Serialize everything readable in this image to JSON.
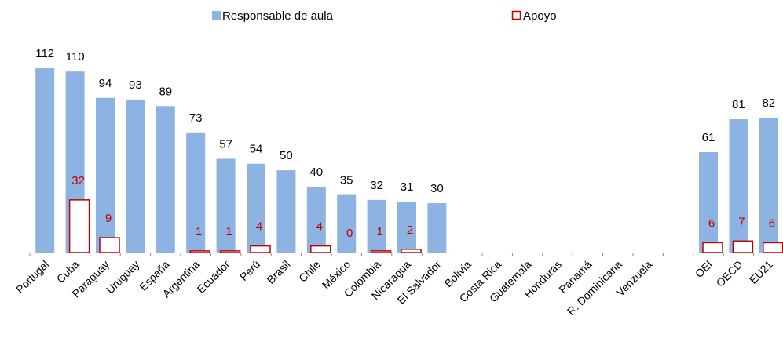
{
  "chart_data": {
    "type": "bar",
    "categories": [
      "Portugal",
      "Cuba",
      "Paraguay",
      "Uruguay",
      "España",
      "Argentina",
      "Ecuador",
      "Perú",
      "Brasil",
      "Chile",
      "México",
      "Colombia",
      "Nicaragua",
      "El Salvador",
      "Bolivia",
      "Costa Rica",
      "Guatemala",
      "Honduras",
      "Panamá",
      "R. Dominicana",
      "Venzuela",
      null,
      "OEI",
      "OECD",
      "EU21"
    ],
    "series": [
      {
        "name": "Responsable de aula",
        "color": "#8db3e2",
        "values": [
          112,
          110,
          94,
          93,
          89,
          73,
          57,
          54,
          50,
          40,
          35,
          32,
          31,
          30,
          null,
          null,
          null,
          null,
          null,
          null,
          null,
          null,
          61,
          81,
          82
        ]
      },
      {
        "name": "Apoyo",
        "color": "#c00000",
        "values": [
          null,
          32,
          9,
          null,
          null,
          1,
          1,
          4,
          null,
          4,
          0,
          1,
          2,
          null,
          null,
          null,
          null,
          null,
          null,
          null,
          null,
          null,
          6,
          7,
          6
        ]
      }
    ],
    "legend": "top"
  }
}
